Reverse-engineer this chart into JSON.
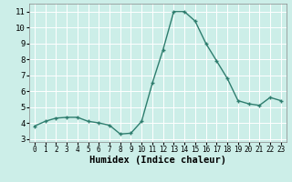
{
  "x": [
    0,
    1,
    2,
    3,
    4,
    5,
    6,
    7,
    8,
    9,
    10,
    11,
    12,
    13,
    14,
    15,
    16,
    17,
    18,
    19,
    20,
    21,
    22,
    23
  ],
  "y": [
    3.8,
    4.1,
    4.3,
    4.35,
    4.35,
    4.1,
    4.0,
    3.85,
    3.3,
    3.35,
    4.1,
    6.5,
    8.6,
    11.0,
    11.0,
    10.4,
    9.0,
    7.9,
    6.8,
    5.4,
    5.2,
    5.1,
    5.6,
    5.4
  ],
  "line_color": "#2e7d6e",
  "marker": "+",
  "marker_size": 3,
  "line_width": 1.0,
  "markeredgewidth": 1.0,
  "xlabel": "Humidex (Indice chaleur)",
  "xlim": [
    -0.5,
    23.5
  ],
  "ylim": [
    2.8,
    11.5
  ],
  "yticks": [
    3,
    4,
    5,
    6,
    7,
    8,
    9,
    10,
    11
  ],
  "xticks": [
    0,
    1,
    2,
    3,
    4,
    5,
    6,
    7,
    8,
    9,
    10,
    11,
    12,
    13,
    14,
    15,
    16,
    17,
    18,
    19,
    20,
    21,
    22,
    23
  ],
  "background_color": "#cceee8",
  "grid_color": "#ffffff",
  "xlabel_fontsize": 7.5,
  "xtick_fontsize": 5.5,
  "ytick_fontsize": 6.5
}
